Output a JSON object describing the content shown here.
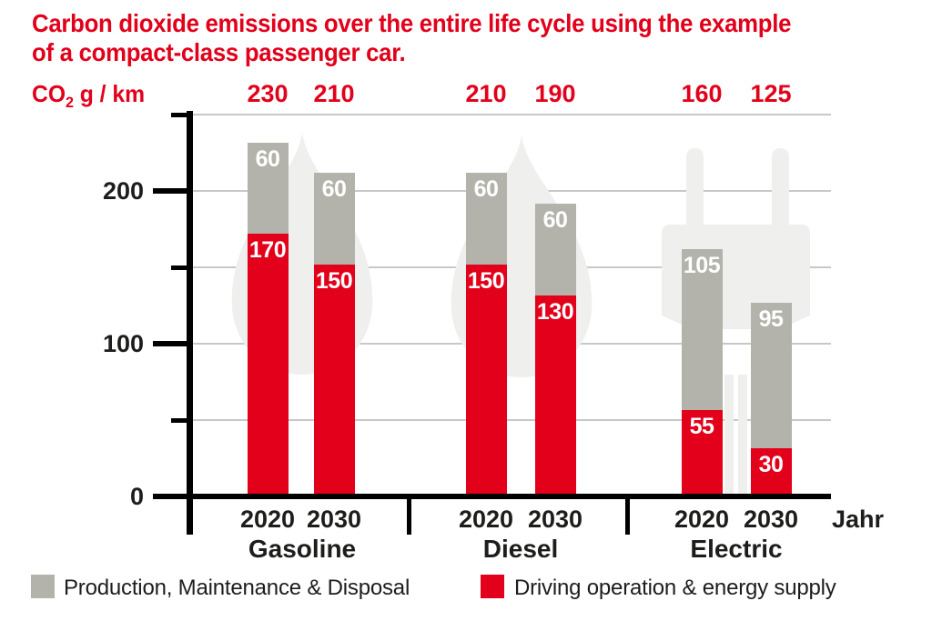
{
  "title": {
    "line1": "Carbon dioxide emissions over the entire life cycle using the example",
    "line2": "of a compact-class passenger car."
  },
  "y_axis": {
    "unit_main": "CO",
    "unit_sub": "2",
    "unit_rest": "g / km",
    "tick_labels": [
      "0",
      "100",
      "200"
    ]
  },
  "x_axis": {
    "year_label": "Jahr"
  },
  "legend": {
    "items": [
      {
        "label": "Production, Maintenance & Disposal",
        "color_key": "gray"
      },
      {
        "label": "Driving operation & energy supply",
        "color_key": "red"
      }
    ]
  },
  "colors": {
    "red": "#e2001a",
    "gray": "#b3b3ac",
    "watermark": "#efefee",
    "gridline": "#c8c8c8",
    "axis": "#000000",
    "text": "#1d1d1b",
    "title_red": "#e2001a",
    "bar_value_text": "#ffffff"
  },
  "chart_data": {
    "type": "bar",
    "stacked": true,
    "title": "Carbon dioxide emissions over the entire life cycle using the example of a compact-class passenger car.",
    "unit": "CO2 g/km",
    "xlabel": "Jahr",
    "ylim": [
      0,
      250
    ],
    "yticks_labeled": [
      0,
      100,
      200
    ],
    "yticks_minor": [
      50,
      150,
      250
    ],
    "grid": true,
    "legend_position": "bottom",
    "series_legend": [
      "Production, Maintenance & Disposal",
      "Driving operation & energy supply"
    ],
    "groups": [
      {
        "name": "Gasoline",
        "watermark_icon": "fuel-drop-icon",
        "bars": [
          {
            "year": "2020",
            "driving_operation": 170,
            "production_maintenance": 60,
            "total": 230
          },
          {
            "year": "2030",
            "driving_operation": 150,
            "production_maintenance": 60,
            "total": 210
          }
        ]
      },
      {
        "name": "Diesel",
        "watermark_icon": "fuel-drop-icon",
        "bars": [
          {
            "year": "2020",
            "driving_operation": 150,
            "production_maintenance": 60,
            "total": 210
          },
          {
            "year": "2030",
            "driving_operation": 130,
            "production_maintenance": 60,
            "total": 190
          }
        ]
      },
      {
        "name": "Electric",
        "watermark_icon": "power-plug-icon",
        "bars": [
          {
            "year": "2020",
            "driving_operation": 55,
            "production_maintenance": 105,
            "total": 160
          },
          {
            "year": "2030",
            "driving_operation": 30,
            "production_maintenance": 95,
            "total": 125
          }
        ]
      }
    ]
  }
}
